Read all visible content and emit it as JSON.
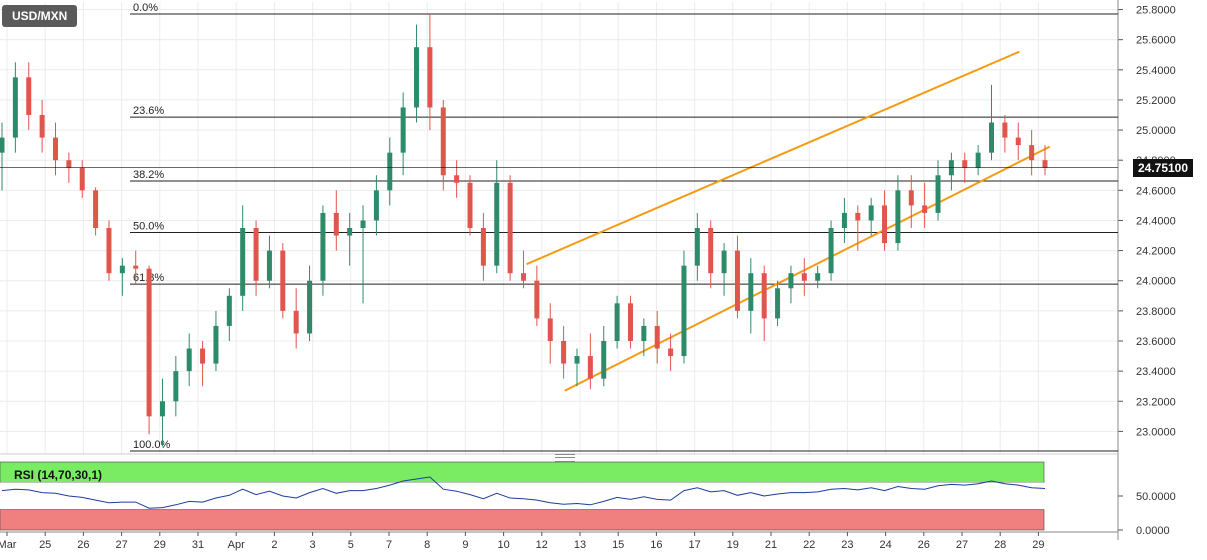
{
  "chart_data": {
    "type": "candlestick",
    "symbol": "USD/MXN",
    "price_axis": {
      "ticks": [
        "25.8000",
        "25.6000",
        "25.4000",
        "25.2000",
        "25.0000",
        "24.8000",
        "24.6000",
        "24.4000",
        "24.2000",
        "24.0000",
        "23.8000",
        "23.6000",
        "23.4000",
        "23.2000",
        "23.0000"
      ],
      "ylim": [
        22.85,
        25.85
      ]
    },
    "x_axis_labels": [
      {
        "label": "Mar",
        "x": 0
      },
      {
        "label": "25",
        "x": 1
      },
      {
        "label": "26",
        "x": 2
      },
      {
        "label": "27",
        "x": 3
      },
      {
        "label": "29",
        "x": 4
      },
      {
        "label": "31",
        "x": 5
      },
      {
        "label": "Apr",
        "x": 6
      },
      {
        "label": "2",
        "x": 7
      },
      {
        "label": "3",
        "x": 8
      },
      {
        "label": "5",
        "x": 9
      },
      {
        "label": "7",
        "x": 10
      },
      {
        "label": "8",
        "x": 11
      },
      {
        "label": "9",
        "x": 12
      },
      {
        "label": "10",
        "x": 13
      },
      {
        "label": "12",
        "x": 14
      },
      {
        "label": "13",
        "x": 15
      },
      {
        "label": "15",
        "x": 16
      },
      {
        "label": "16",
        "x": 17
      },
      {
        "label": "17",
        "x": 18
      },
      {
        "label": "19",
        "x": 19
      },
      {
        "label": "21",
        "x": 20
      },
      {
        "label": "22",
        "x": 21
      },
      {
        "label": "23",
        "x": 22
      },
      {
        "label": "24",
        "x": 23
      },
      {
        "label": "26",
        "x": 24
      },
      {
        "label": "27",
        "x": 25
      },
      {
        "label": "28",
        "x": 26
      },
      {
        "label": "29",
        "x": 27
      }
    ],
    "fibonacci": {
      "high": 25.77,
      "low": 22.87,
      "levels": [
        {
          "label": "0.0%",
          "ratio": 0.0
        },
        {
          "label": "23.6%",
          "ratio": 0.236
        },
        {
          "label": "38.2%",
          "ratio": 0.382
        },
        {
          "label": "50.0%",
          "ratio": 0.5
        },
        {
          "label": "61.8%",
          "ratio": 0.618
        },
        {
          "label": "100.0%",
          "ratio": 1.0
        }
      ]
    },
    "channel_lines": [
      {
        "from": [
          13.6,
          24.11
        ],
        "to": [
          26.5,
          25.52
        ]
      },
      {
        "from": [
          14.6,
          23.27
        ],
        "to": [
          27.3,
          24.89
        ]
      }
    ],
    "last_price": "24.75100",
    "candles": [
      [
        24.85,
        25.05,
        24.6,
        24.95
      ],
      [
        24.95,
        25.45,
        24.85,
        25.35
      ],
      [
        25.35,
        25.45,
        25.0,
        25.1
      ],
      [
        25.1,
        25.2,
        24.85,
        24.95
      ],
      [
        24.95,
        25.05,
        24.7,
        24.8
      ],
      [
        24.8,
        24.85,
        24.65,
        24.75
      ],
      [
        24.75,
        24.8,
        24.55,
        24.6
      ],
      [
        24.6,
        24.62,
        24.3,
        24.35
      ],
      [
        24.35,
        24.4,
        24.0,
        24.05
      ],
      [
        24.05,
        24.15,
        23.9,
        24.1
      ],
      [
        24.1,
        24.2,
        23.98,
        24.08
      ],
      [
        24.08,
        24.1,
        22.98,
        23.1
      ],
      [
        23.1,
        23.35,
        22.9,
        23.2
      ],
      [
        23.2,
        23.5,
        23.1,
        23.4
      ],
      [
        23.4,
        23.65,
        23.3,
        23.55
      ],
      [
        23.55,
        23.6,
        23.3,
        23.45
      ],
      [
        23.45,
        23.8,
        23.4,
        23.7
      ],
      [
        23.7,
        23.95,
        23.6,
        23.9
      ],
      [
        23.9,
        24.5,
        23.8,
        24.35
      ],
      [
        24.35,
        24.4,
        23.9,
        24.0
      ],
      [
        24.0,
        24.3,
        23.95,
        24.2
      ],
      [
        24.2,
        24.25,
        23.75,
        23.8
      ],
      [
        23.8,
        23.95,
        23.55,
        23.65
      ],
      [
        23.65,
        24.1,
        23.6,
        24.0
      ],
      [
        24.0,
        24.5,
        23.9,
        24.45
      ],
      [
        24.45,
        24.6,
        24.2,
        24.3
      ],
      [
        24.3,
        24.45,
        24.1,
        24.35
      ],
      [
        24.35,
        24.5,
        23.85,
        24.4
      ],
      [
        24.4,
        24.7,
        24.3,
        24.6
      ],
      [
        24.6,
        24.95,
        24.5,
        24.85
      ],
      [
        24.85,
        25.25,
        24.7,
        25.15
      ],
      [
        25.15,
        25.7,
        25.05,
        25.55
      ],
      [
        25.55,
        25.77,
        25.0,
        25.15
      ],
      [
        25.15,
        25.2,
        24.6,
        24.7
      ],
      [
        24.7,
        24.8,
        24.55,
        24.65
      ],
      [
        24.65,
        24.7,
        24.3,
        24.35
      ],
      [
        24.35,
        24.45,
        24.0,
        24.1
      ],
      [
        24.1,
        24.8,
        24.05,
        24.65
      ],
      [
        24.65,
        24.7,
        24.0,
        24.05
      ],
      [
        24.05,
        24.2,
        23.95,
        24.0
      ],
      [
        24.0,
        24.1,
        23.7,
        23.75
      ],
      [
        23.75,
        23.85,
        23.45,
        23.6
      ],
      [
        23.6,
        23.7,
        23.35,
        23.45
      ],
      [
        23.45,
        23.55,
        23.3,
        23.5
      ],
      [
        23.5,
        23.65,
        23.28,
        23.35
      ],
      [
        23.35,
        23.7,
        23.3,
        23.6
      ],
      [
        23.6,
        23.9,
        23.55,
        23.85
      ],
      [
        23.85,
        23.9,
        23.55,
        23.6
      ],
      [
        23.6,
        23.75,
        23.5,
        23.7
      ],
      [
        23.7,
        23.8,
        23.45,
        23.55
      ],
      [
        23.55,
        23.65,
        23.4,
        23.5
      ],
      [
        23.5,
        24.2,
        23.45,
        24.1
      ],
      [
        24.1,
        24.45,
        24.0,
        24.35
      ],
      [
        24.35,
        24.4,
        23.95,
        24.05
      ],
      [
        24.05,
        24.25,
        23.9,
        24.2
      ],
      [
        24.2,
        24.3,
        23.75,
        23.8
      ],
      [
        23.8,
        24.15,
        23.65,
        24.05
      ],
      [
        24.05,
        24.1,
        23.6,
        23.75
      ],
      [
        23.75,
        24.0,
        23.7,
        23.95
      ],
      [
        23.95,
        24.1,
        23.85,
        24.05
      ],
      [
        24.05,
        24.15,
        23.9,
        24.0
      ],
      [
        24.0,
        24.1,
        23.95,
        24.05
      ],
      [
        24.05,
        24.4,
        24.0,
        24.35
      ],
      [
        24.35,
        24.55,
        24.25,
        24.45
      ],
      [
        24.45,
        24.5,
        24.2,
        24.4
      ],
      [
        24.4,
        24.55,
        24.3,
        24.5
      ],
      [
        24.5,
        24.6,
        24.2,
        24.25
      ],
      [
        24.25,
        24.7,
        24.2,
        24.6
      ],
      [
        24.6,
        24.7,
        24.35,
        24.5
      ],
      [
        24.5,
        24.65,
        24.35,
        24.45
      ],
      [
        24.45,
        24.8,
        24.4,
        24.7
      ],
      [
        24.7,
        24.85,
        24.6,
        24.8
      ],
      [
        24.8,
        24.85,
        24.65,
        24.75
      ],
      [
        24.75,
        24.9,
        24.7,
        24.85
      ],
      [
        24.85,
        25.3,
        24.8,
        25.05
      ],
      [
        25.05,
        25.1,
        24.85,
        24.95
      ],
      [
        24.95,
        25.05,
        24.8,
        24.9
      ],
      [
        24.9,
        25.0,
        24.7,
        24.8
      ],
      [
        24.8,
        24.9,
        24.7,
        24.75
      ]
    ],
    "rsi": {
      "label": "RSI (14,70,30,1)",
      "ticks": [
        "50.0000",
        "0.0000"
      ],
      "overbought": 70,
      "oversold": 30,
      "values": [
        58,
        60,
        59,
        55,
        54,
        50,
        48,
        44,
        40,
        41,
        41,
        32,
        33,
        37,
        42,
        41,
        47,
        51,
        60,
        52,
        57,
        50,
        47,
        55,
        61,
        54,
        58,
        58,
        61,
        66,
        72,
        75,
        78,
        60,
        57,
        52,
        46,
        54,
        47,
        46,
        44,
        40,
        38,
        39,
        37,
        42,
        48,
        45,
        49,
        45,
        44,
        58,
        62,
        56,
        58,
        51,
        55,
        50,
        53,
        55,
        55,
        56,
        60,
        61,
        59,
        62,
        58,
        64,
        61,
        60,
        65,
        67,
        66,
        68,
        72,
        68,
        66,
        62,
        61
      ]
    },
    "colors": {
      "bull": "#2e8b6a",
      "bear": "#e0554c",
      "channel": "#f39c12",
      "rsi_line": "#1f3c9c",
      "rsi_overbought_band": "#79ec63",
      "rsi_oversold_band": "#f08080"
    }
  }
}
